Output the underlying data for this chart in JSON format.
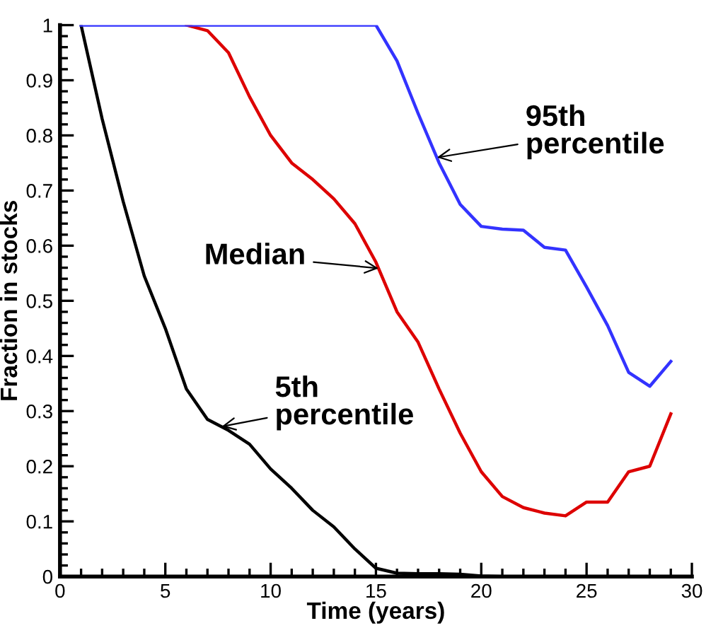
{
  "chart_data": {
    "type": "line",
    "xlabel": "Time (years)",
    "ylabel": "Fraction in stocks",
    "x": [
      1,
      2,
      3,
      4,
      5,
      6,
      7,
      8,
      9,
      10,
      11,
      12,
      13,
      14,
      15,
      16,
      17,
      18,
      19,
      20,
      21,
      22,
      23,
      24,
      25,
      26,
      27,
      28,
      29
    ],
    "series": [
      {
        "color": "#000000",
        "values": [
          1,
          0.83,
          0.68,
          0.545,
          0.45,
          0.34,
          0.285,
          0.265,
          0.24,
          0.195,
          0.16,
          0.12,
          0.09,
          0.05,
          0.015,
          0.006,
          0.005,
          0.005,
          0.004,
          0.001,
          0,
          0,
          0,
          0,
          0,
          0,
          0,
          0,
          0
        ]
      },
      {
        "color": "#dd0000",
        "values": [
          null,
          null,
          null,
          null,
          null,
          1,
          0.99,
          0.95,
          0.87,
          0.8,
          0.75,
          0.72,
          0.685,
          0.64,
          0.57,
          0.48,
          0.425,
          0.34,
          0.26,
          0.19,
          0.145,
          0.125,
          0.115,
          0.11,
          0.135,
          0.135,
          0.19,
          0.2,
          0.295
        ]
      },
      {
        "color": "#3333ff",
        "values": [
          1,
          1,
          1,
          1,
          1,
          1,
          1,
          1,
          1,
          1,
          1,
          1,
          1,
          1,
          1,
          0.935,
          0.84,
          0.75,
          0.675,
          0.635,
          0.63,
          0.628,
          0.597,
          0.592,
          0.525,
          0.455,
          0.37,
          0.345,
          0.39
        ]
      }
    ],
    "annotations": [
      {
        "text": "95th\npercentile",
        "x": 17.9,
        "y": 0.76
      },
      {
        "text": "Median",
        "x": 15.12,
        "y": 0.559
      },
      {
        "text": "5th\npercentile",
        "x": 7.68,
        "y": 0.272
      }
    ],
    "xlim": [
      0,
      30
    ],
    "ylim": [
      0,
      1
    ],
    "xticks": [
      0,
      5,
      10,
      15,
      20,
      25,
      30
    ],
    "yticks": [
      0,
      0.1,
      0.2,
      0.3,
      0.4,
      0.5,
      0.6,
      0.7,
      0.8,
      0.9,
      1
    ],
    "grid": false,
    "legend": false,
    "line_style": "solid",
    "marker": "none"
  }
}
